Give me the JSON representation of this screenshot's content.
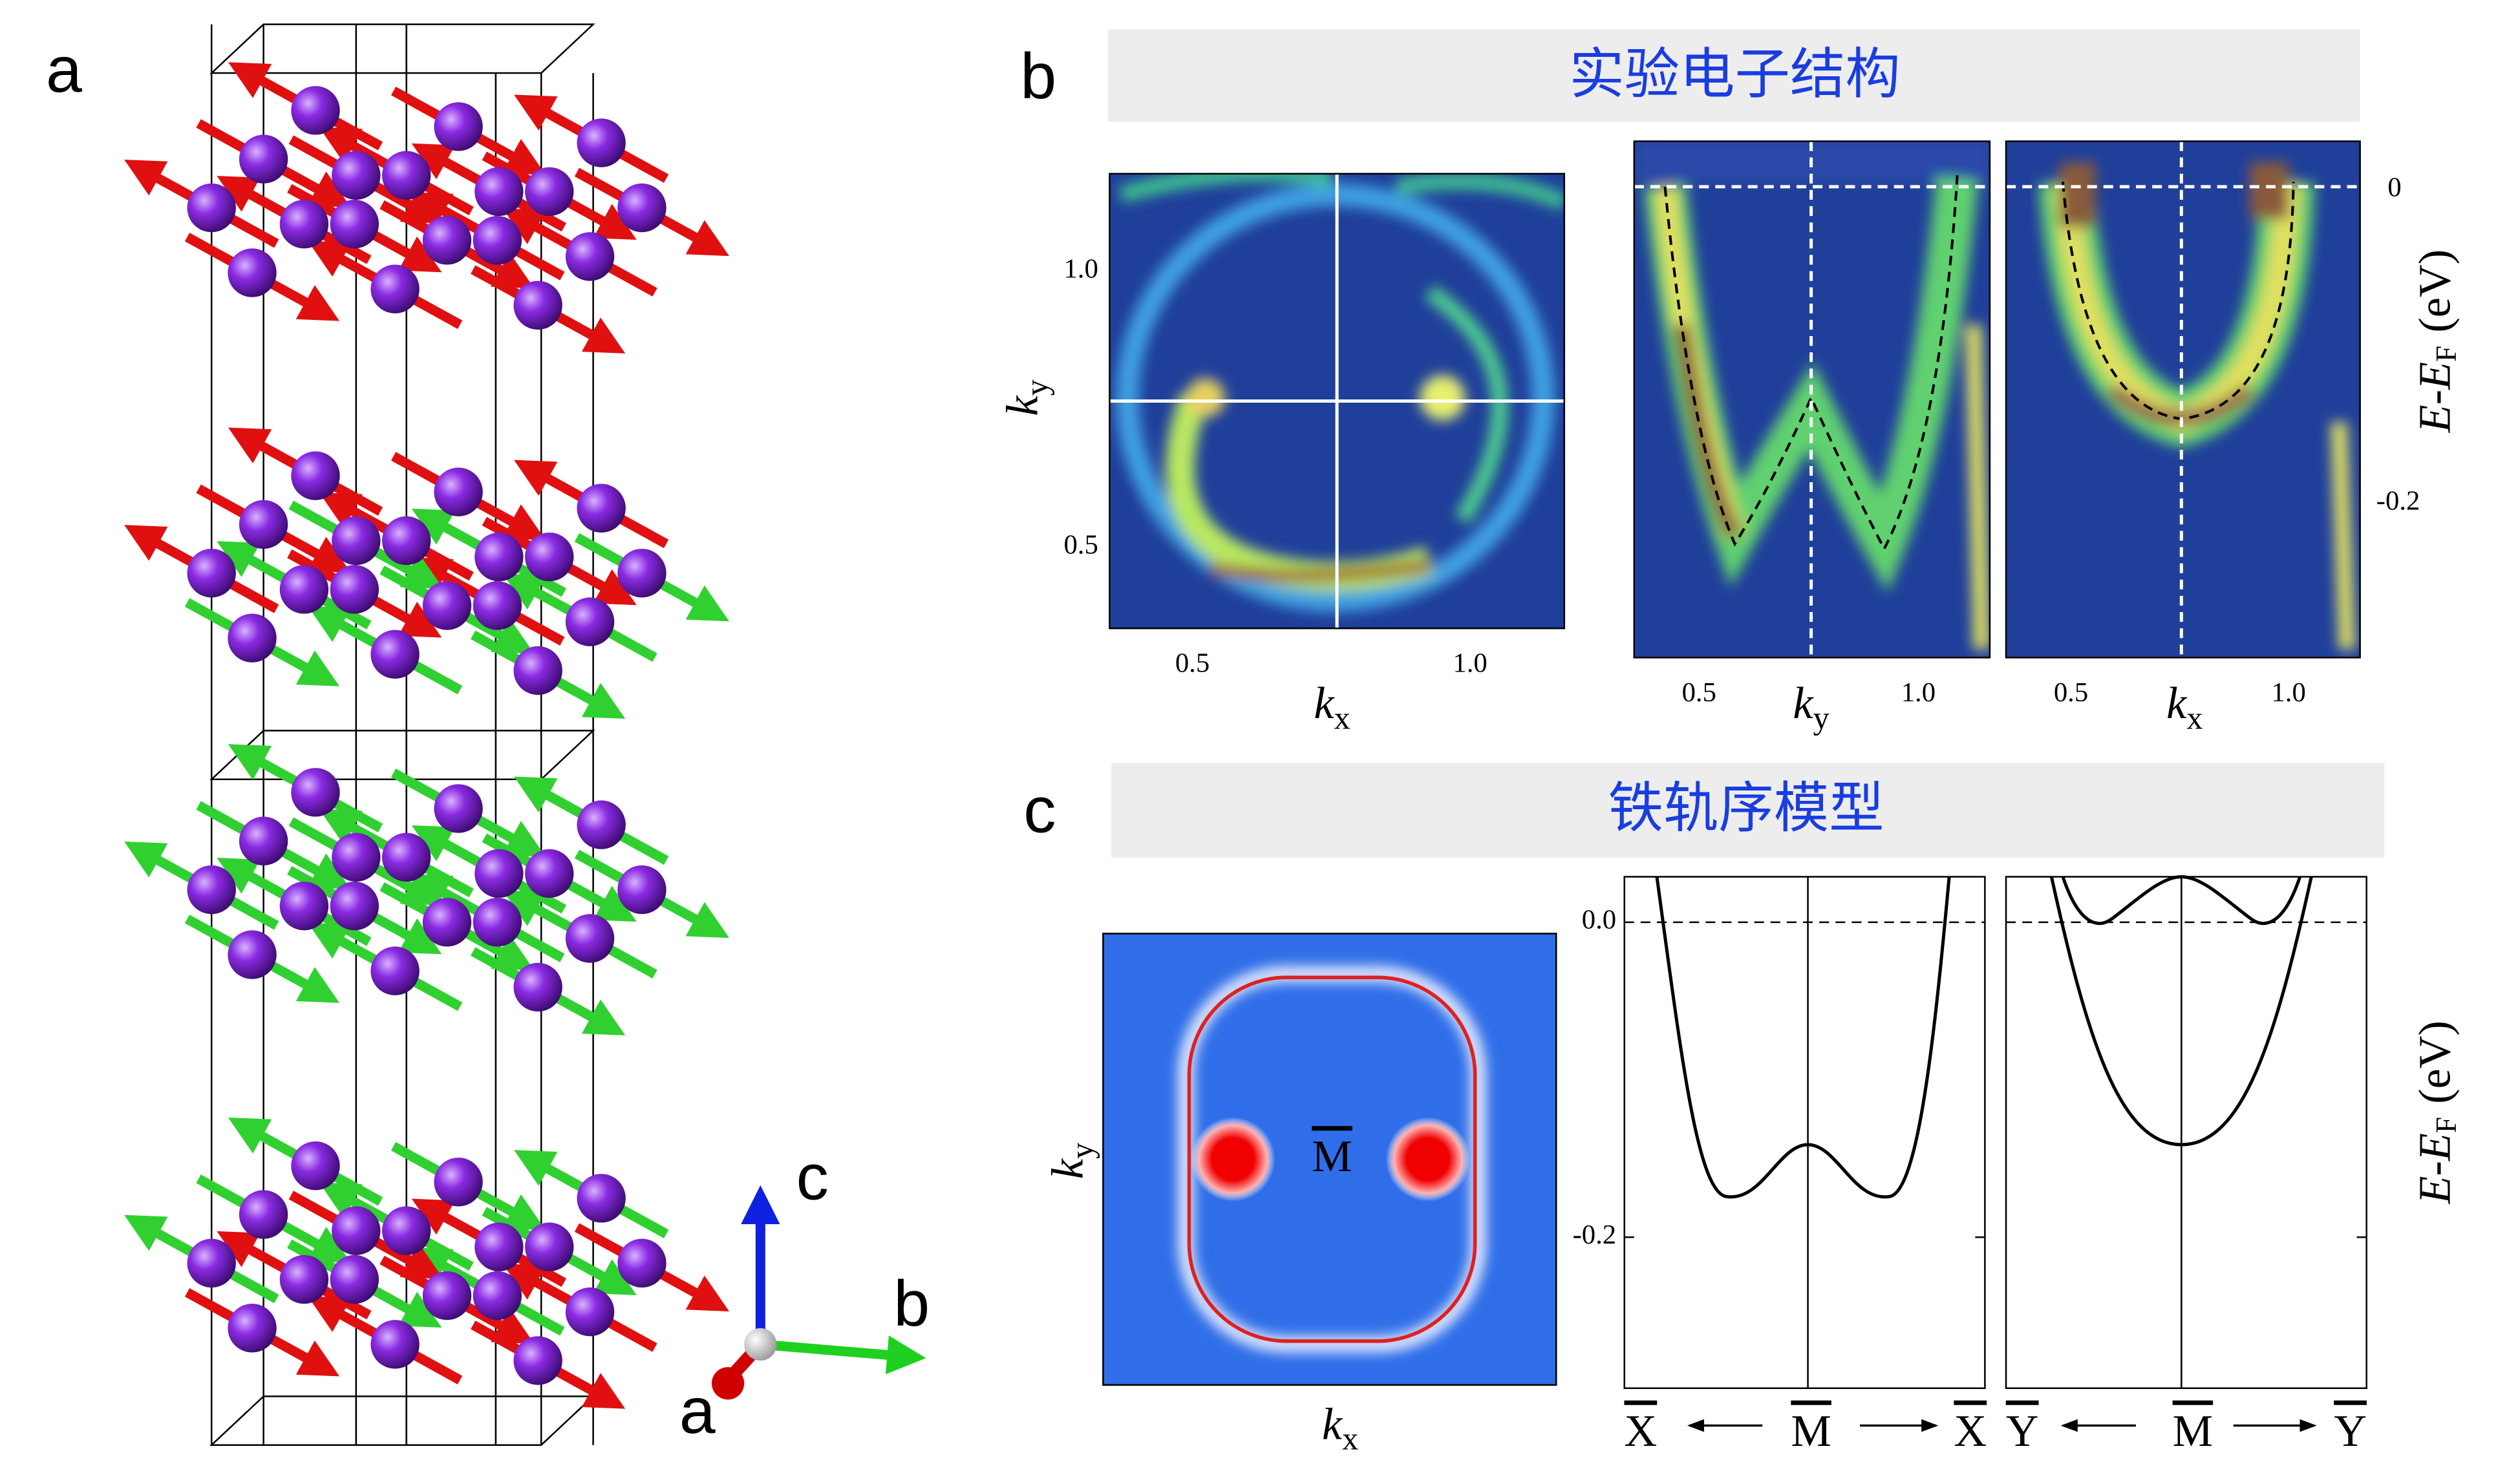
{
  "panel_a": {
    "label": "a",
    "axes": {
      "c": "c",
      "b": "b",
      "a": "a"
    }
  },
  "panel_b": {
    "label": "b",
    "title": "实验电子结构",
    "map": {
      "yticks": [
        "1.0",
        "0.5"
      ],
      "xticks": [
        "0.5",
        "1.0"
      ],
      "xlabel": {
        "main": "k",
        "sub": "x"
      },
      "ylabel": {
        "main": "k",
        "sub": "y"
      }
    },
    "cut_ky": {
      "xticks": [
        "0.5",
        "1.0"
      ],
      "xlabel": {
        "main": "k",
        "sub": "y"
      }
    },
    "cut_kx": {
      "xticks": [
        "0.5",
        "1.0"
      ],
      "xlabel": {
        "main": "k",
        "sub": "x"
      }
    },
    "energy_axis": {
      "ticks": [
        "0",
        "-0.2"
      ],
      "label": {
        "main": "E-E",
        "sub": "F",
        "unit": "(eV)"
      }
    }
  },
  "panel_c": {
    "label": "c",
    "title": "铁轨序模型",
    "map": {
      "point": "M",
      "xlabel": {
        "main": "k",
        "sub": "x"
      },
      "ylabel": {
        "main": "k",
        "sub": "y"
      }
    },
    "energy_axis": {
      "ticks": [
        "0.0",
        "-0.2"
      ],
      "label": {
        "main": "E-E",
        "sub": "F",
        "unit": "(eV)"
      }
    },
    "cut_1": {
      "left": "X",
      "center": "M",
      "right": "X"
    },
    "cut_2": {
      "left": "Y",
      "center": "M",
      "right": "Y"
    }
  }
}
